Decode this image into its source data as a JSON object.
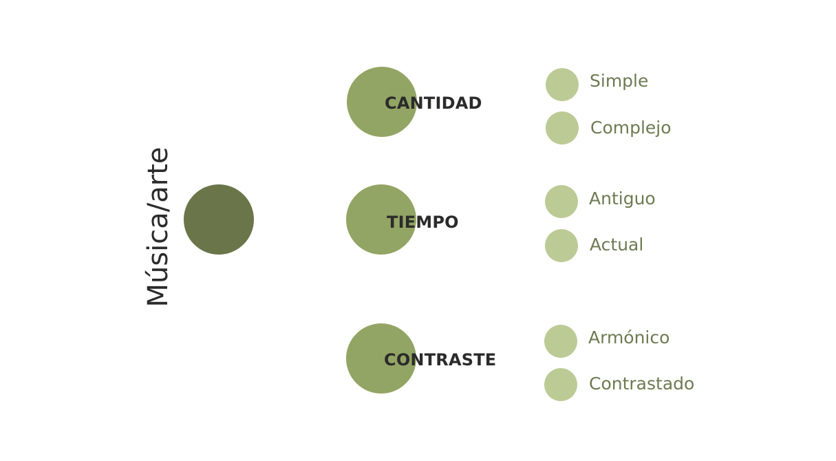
{
  "root": {
    "label": "Música/arte",
    "color": "#6a7549"
  },
  "categories": [
    {
      "label": "CANTIDAD",
      "color": "#93a564",
      "children": [
        {
          "label": "Simple",
          "color": "#bccb96"
        },
        {
          "label": "Complejo",
          "color": "#bccb96"
        }
      ]
    },
    {
      "label": "TIEMPO",
      "color": "#93a564",
      "children": [
        {
          "label": "Antiguo",
          "color": "#bccb96"
        },
        {
          "label": "Actual",
          "color": "#bccb96"
        }
      ]
    },
    {
      "label": "CONTRASTE",
      "color": "#93a564",
      "children": [
        {
          "label": "Armónico",
          "color": "#bccb96"
        },
        {
          "label": "Contrastado",
          "color": "#bccb96"
        }
      ]
    }
  ]
}
